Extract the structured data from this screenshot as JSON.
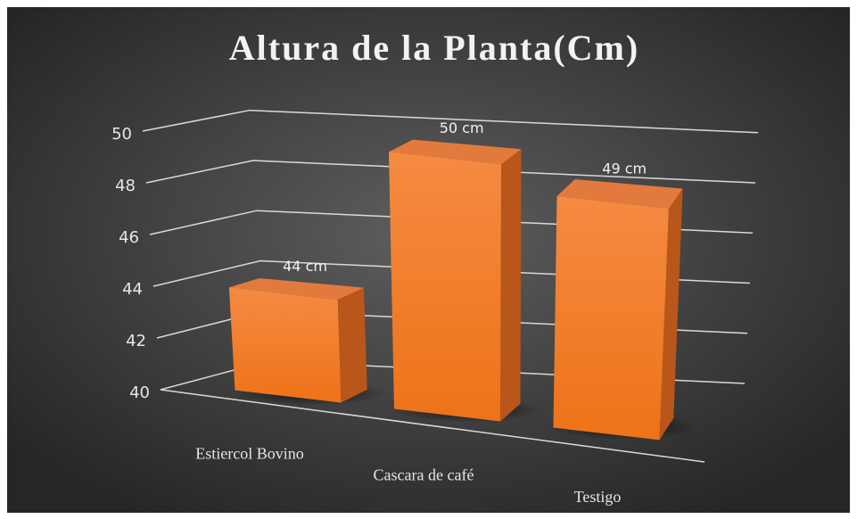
{
  "chart_data": {
    "type": "bar3d",
    "title": "Altura de la Planta(Cm)",
    "categories": [
      "Estiercol Bovino",
      "Cascara de café",
      "Testigo"
    ],
    "values": [
      44,
      50,
      49
    ],
    "value_labels": [
      "44 cm",
      "50 cm",
      "49 cm"
    ],
    "color": "#f07a24",
    "ylim": [
      40,
      50
    ],
    "yticks": [
      40,
      42,
      44,
      46,
      48,
      50
    ],
    "grid": true
  }
}
